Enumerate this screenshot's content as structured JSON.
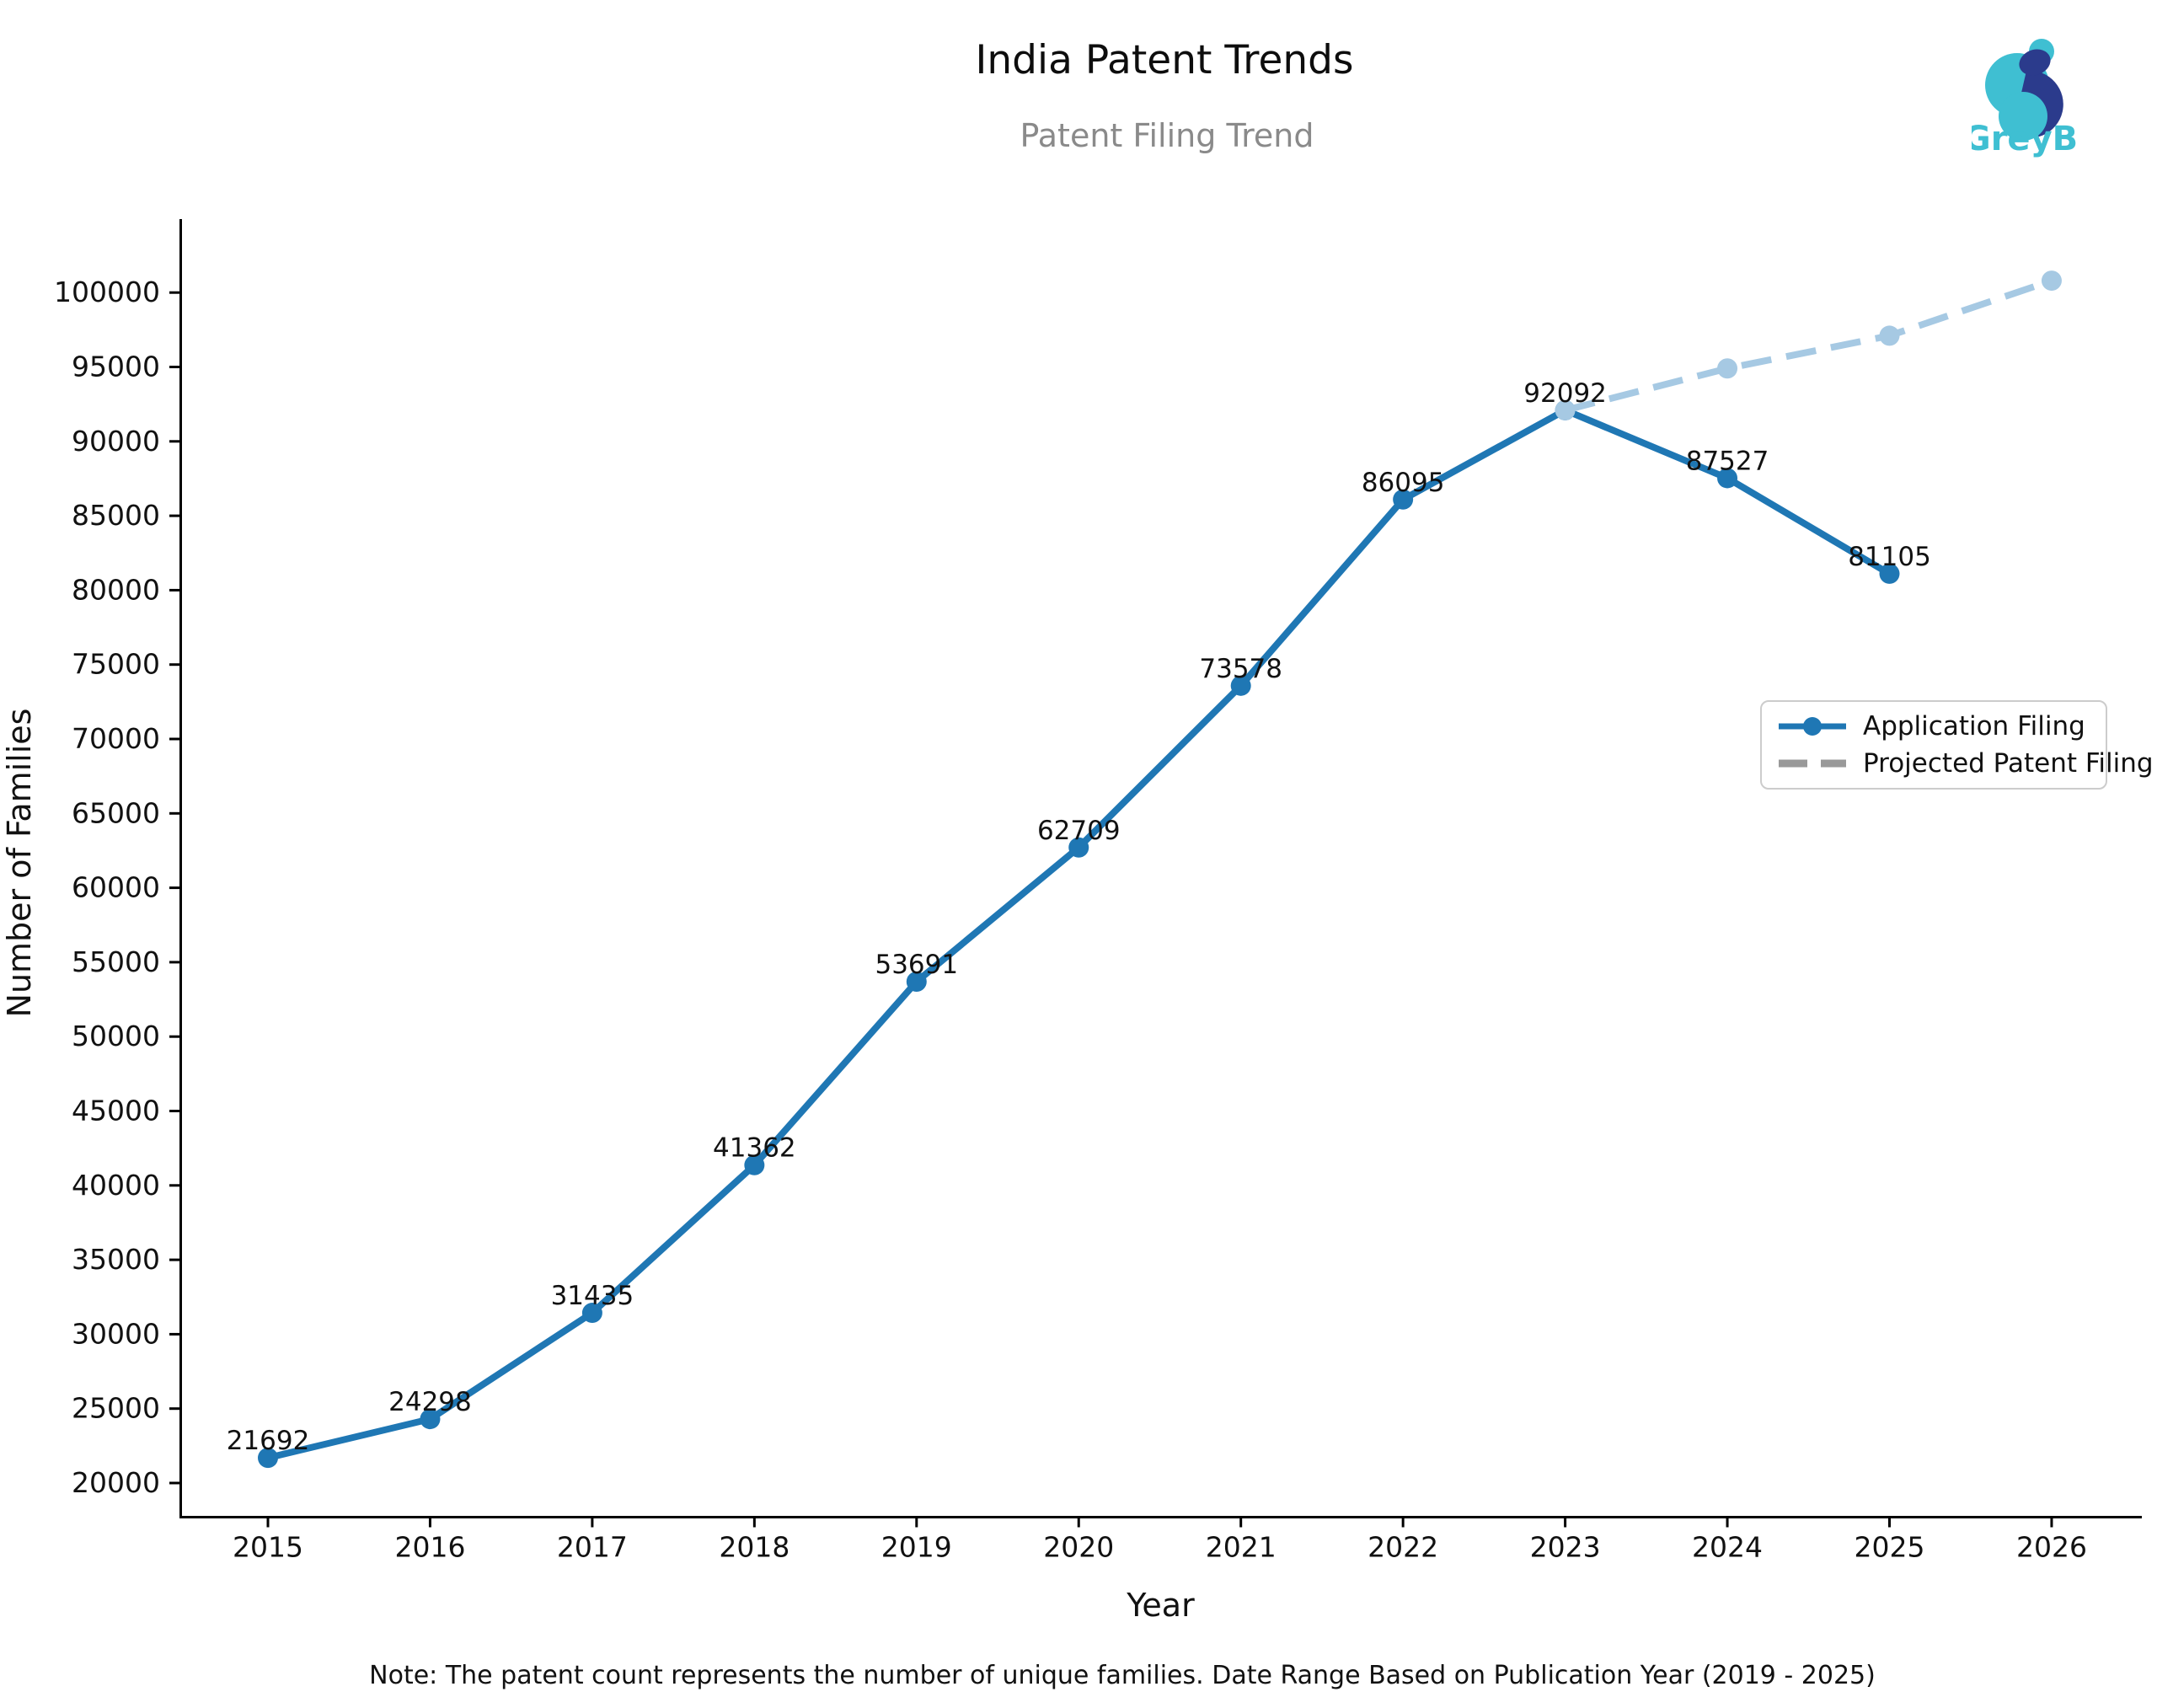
{
  "header": {
    "title": "India Patent Trends",
    "subtitle": "Patent Filing Trend"
  },
  "logo": {
    "brand": "GreyB",
    "teal": "#3fbfd2",
    "navy": "#2b3b8c"
  },
  "legend": {
    "position": "right-middle",
    "items": [
      {
        "label": "Application Filing",
        "style": "solid-with-marker",
        "color": "#1f77b4"
      },
      {
        "label": "Projected Patent Filing",
        "style": "dashed",
        "color": "#999999"
      }
    ]
  },
  "note": "Note: The patent count represents the number of unique families. Date Range Based on Publication Year (2019 - 2025)",
  "chart_data": {
    "type": "line",
    "title": "India Patent Trends",
    "subtitle": "Patent Filing Trend",
    "xlabel": "Year",
    "ylabel": "Number of Families",
    "grid": false,
    "legend_position": "right-middle",
    "x": [
      2015,
      2016,
      2017,
      2018,
      2019,
      2020,
      2021,
      2022,
      2023,
      2024,
      2025,
      2026
    ],
    "xticks": [
      2015,
      2016,
      2017,
      2018,
      2019,
      2020,
      2021,
      2022,
      2023,
      2024,
      2025,
      2026
    ],
    "yticks": [
      20000,
      25000,
      30000,
      35000,
      40000,
      45000,
      50000,
      55000,
      60000,
      65000,
      70000,
      75000,
      80000,
      85000,
      90000,
      95000,
      100000
    ],
    "ylim": [
      17700,
      104900
    ],
    "series": [
      {
        "name": "Application Filing",
        "style": "solid",
        "color": "#1f77b4",
        "marker": "circle",
        "labels_shown": true,
        "x": [
          2015,
          2016,
          2017,
          2018,
          2019,
          2020,
          2021,
          2022,
          2023,
          2024,
          2025
        ],
        "values": [
          21692,
          24298,
          31435,
          41362,
          53691,
          62709,
          73578,
          86095,
          92092,
          87527,
          81105
        ]
      },
      {
        "name": "Projected Patent Filing",
        "style": "dashed",
        "color": "#a6c9e3",
        "marker": "circle",
        "labels_shown": false,
        "values_estimated_from_pixels": true,
        "x": [
          2023,
          2024,
          2025,
          2026
        ],
        "values": [
          92092,
          94900,
          97100,
          100800
        ]
      }
    ]
  }
}
